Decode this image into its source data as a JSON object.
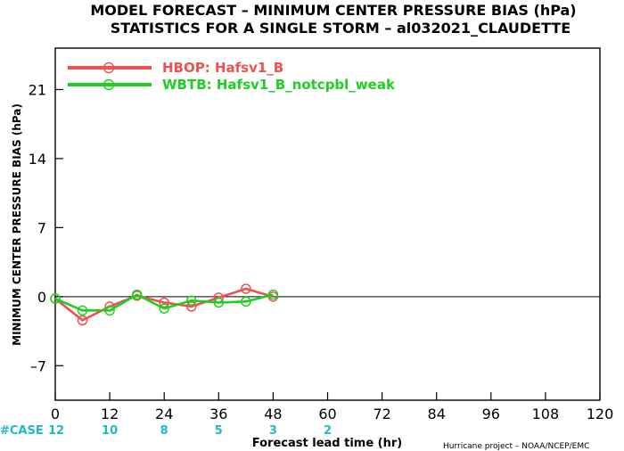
{
  "chart_data": {
    "type": "line",
    "title": "MODEL FORECAST – MINIMUM CENTER PRESSURE BIAS (hPa)",
    "subtitle": "STATISTICS FOR A SINGLE STORM – al032021_CLAUDETTE",
    "xlabel": "Forecast lead time (hr)",
    "ylabel": "MINIMUM CENTER PRESSURE BIAS (hPa)",
    "xlim": [
      0,
      120
    ],
    "ylim": [
      -10.5,
      25.2
    ],
    "x_ticks": [
      0,
      12,
      24,
      36,
      48,
      60,
      72,
      84,
      96,
      108,
      120
    ],
    "y_ticks": [
      -7,
      0,
      7,
      14,
      21
    ],
    "zero_line": true,
    "grid": false,
    "legend_position": "top-left",
    "series": [
      {
        "name": "HBOP: Hafsv1_B",
        "color": "#f05050",
        "x": [
          0,
          6,
          12,
          18,
          24,
          30,
          36,
          42,
          48
        ],
        "y": [
          -0.2,
          -2.4,
          -1.0,
          0.1,
          -0.6,
          -1.0,
          -0.1,
          0.8,
          0.0
        ]
      },
      {
        "name": "WBTB: Hafsv1_B_notcpbl_weak",
        "color": "#1ed01e",
        "x": [
          0,
          6,
          12,
          18,
          24,
          30,
          36,
          42,
          48
        ],
        "y": [
          -0.2,
          -1.4,
          -1.4,
          0.2,
          -1.2,
          -0.4,
          -0.6,
          -0.5,
          0.2
        ]
      }
    ],
    "case_counts": {
      "label": "#CASE",
      "x": [
        0,
        12,
        24,
        36,
        48,
        60
      ],
      "values": [
        12,
        10,
        8,
        5,
        3,
        2
      ],
      "color": "#20b8c8"
    },
    "credit": "Hurricane project – NOAA/NCEP/EMC"
  }
}
